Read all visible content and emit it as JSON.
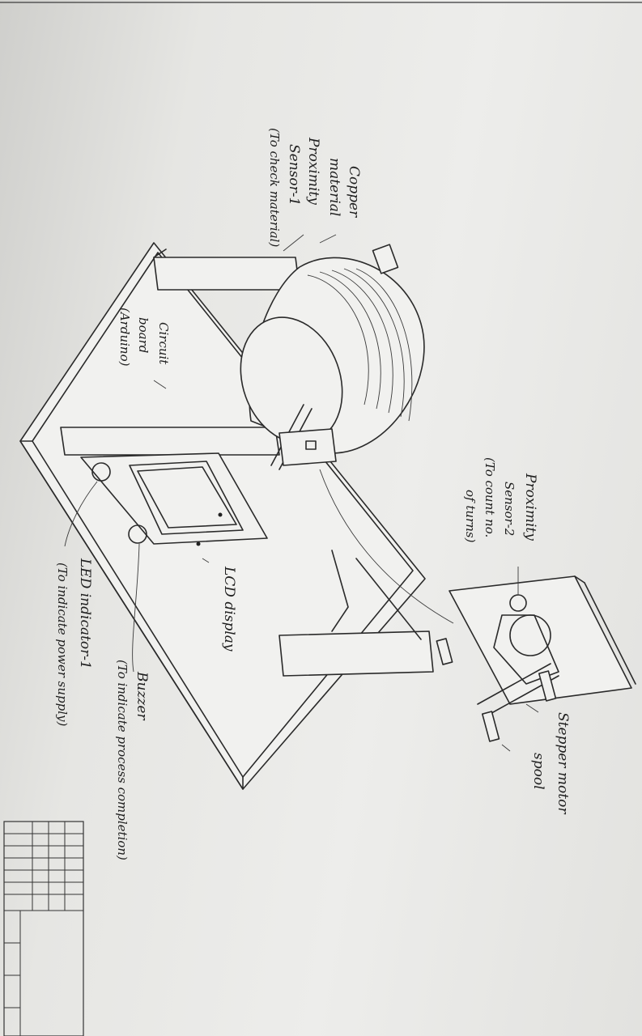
{
  "labels": {
    "copper_1": "Copper",
    "copper_2": "material",
    "prox1_1": "Proximity",
    "prox1_2": "Sensor-1",
    "prox1_3": "(To check material)",
    "circuit_1": "Circuit",
    "circuit_2": "board",
    "circuit_3": "(Arduino)",
    "prox2_1": "Proximity",
    "prox2_2": "Sensor-2",
    "prox2_3": "(To count no.",
    "prox2_4": "of turns)",
    "lcd": "LCD display",
    "stepper": "Stepper motor",
    "spool": "spool",
    "buzzer_1": "Buzzer",
    "buzzer_2": "(To indicate process completion)",
    "led_1": "LED indicator-1",
    "led_2": "(To indicate power supply)"
  },
  "colors": {
    "ink": "#2a2a2a",
    "paper": "#ededeb"
  }
}
